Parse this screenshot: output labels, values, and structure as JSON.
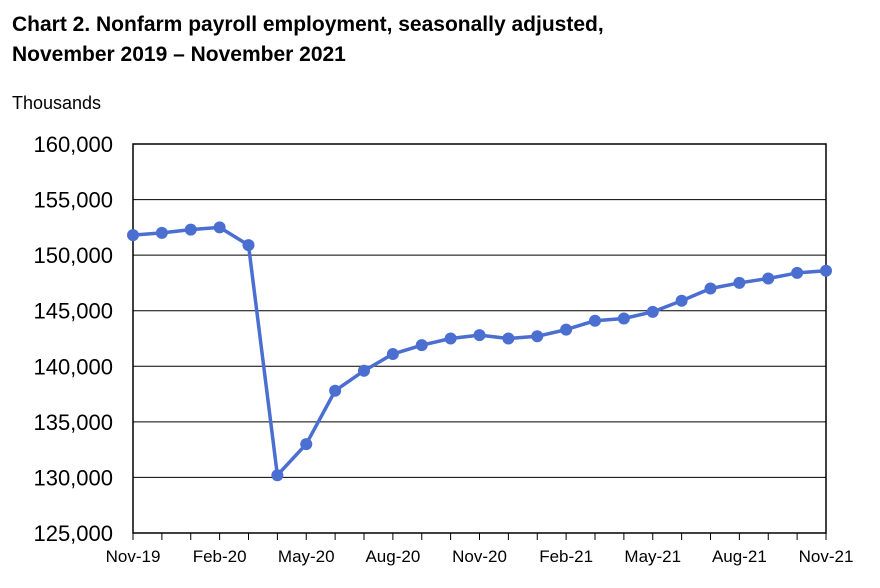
{
  "chart_data": {
    "type": "line",
    "title": "Chart 2. Nonfarm payroll employment, seasonally adjusted,",
    "subtitle": "November 2019 – November 2021",
    "ylabel": "Thousands",
    "xlabel": "",
    "ylim": [
      125000,
      160000
    ],
    "yticks": [
      "125,000",
      "130,000",
      "135,000",
      "140,000",
      "145,000",
      "150,000",
      "155,000",
      "160,000"
    ],
    "x_tick_labels": [
      "Nov-19",
      "Feb-20",
      "May-20",
      "Aug-20",
      "Nov-20",
      "Feb-21",
      "May-21",
      "Aug-21",
      "Nov-21"
    ],
    "x": [
      "Nov-19",
      "Dec-19",
      "Jan-20",
      "Feb-20",
      "Mar-20",
      "Apr-20",
      "May-20",
      "Jun-20",
      "Jul-20",
      "Aug-20",
      "Sep-20",
      "Oct-20",
      "Nov-20",
      "Dec-20",
      "Jan-21",
      "Feb-21",
      "Mar-21",
      "Apr-21",
      "May-21",
      "Jun-21",
      "Jul-21",
      "Aug-21",
      "Sep-21",
      "Oct-21",
      "Nov-21"
    ],
    "series": [
      {
        "values": [
          151800,
          152000,
          152300,
          152500,
          150900,
          130200,
          133000,
          137800,
          139600,
          141100,
          141900,
          142500,
          142800,
          142500,
          142700,
          143300,
          144100,
          144300,
          144900,
          145900,
          147000,
          147500,
          147900,
          148400,
          148600
        ],
        "color": "#4a6fd1"
      }
    ],
    "grid": true,
    "legend": "none"
  }
}
